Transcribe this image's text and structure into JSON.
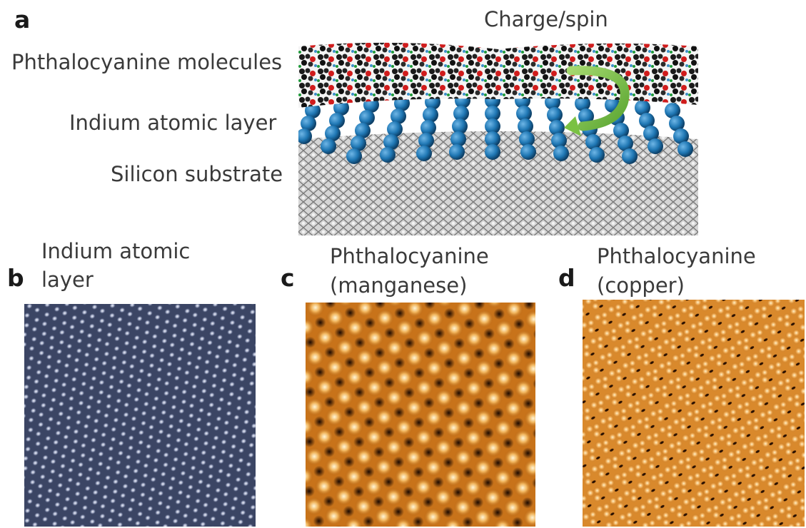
{
  "panel_a": {
    "letter": "a",
    "arrow_label": "Charge/spin",
    "layer_labels": {
      "molecules": "Phthalocyanine molecules",
      "indium": "Indium atomic layer",
      "silicon": "Silicon substrate"
    }
  },
  "panel_b": {
    "letter": "b",
    "title_line1": "Indium atomic",
    "title_line2": "layer"
  },
  "panel_c": {
    "letter": "c",
    "title_line1": "Phthalocyanine",
    "title_line2": "(manganese)"
  },
  "panel_d": {
    "letter": "d",
    "title_line1": "Phthalocyanine",
    "title_line2": "(copper)"
  },
  "colors": {
    "indium_atoms": "#1f77b4",
    "silicon": "#b9b9b9",
    "molecule_dark": "#1a1a1a",
    "molecule_red": "#d01c1c",
    "arrow_green": "#7ac143",
    "stm_indium": "#3b4564",
    "stm_manganese": "#c8731a",
    "stm_copper": "#d9892c"
  }
}
